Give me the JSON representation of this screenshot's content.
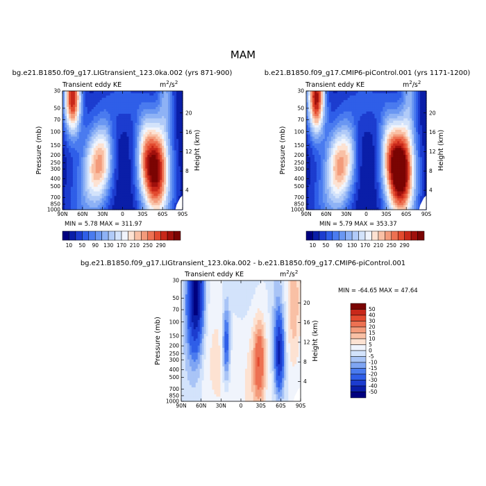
{
  "figure": {
    "title": "MAM",
    "field_label": "Transient eddy KE",
    "units_base": "m",
    "units_exp": "2",
    "units_sep": "/s",
    "units_exp2": "2",
    "ylabel_left": "Pressure (mb)",
    "ylabel_right": "Height (km)"
  },
  "colors": {
    "abs_scale": [
      "#00007f",
      "#0a1ea8",
      "#1c3ccf",
      "#2f5ee8",
      "#4a7bef",
      "#6a97f2",
      "#8eb2f5",
      "#b1cbf8",
      "#d3e3fb",
      "#f0f4fc",
      "#fde2d2",
      "#f9c0a5",
      "#f39b7b",
      "#ed7152",
      "#e24a2f",
      "#c8281a",
      "#a0100c",
      "#7a0403"
    ],
    "diff_scale": [
      "#00007f",
      "#0a1ea8",
      "#1c3ccf",
      "#2f5ee8",
      "#4a7bef",
      "#7fa5f3",
      "#a9c4f6",
      "#d3e3fb",
      "#f0f4fc",
      "#fde2d2",
      "#f9c0a5",
      "#f39b7b",
      "#ed7152",
      "#e24a2f",
      "#c8281a",
      "#7a0403"
    ]
  },
  "chart_data": [
    {
      "type": "heatmap",
      "title": "bg.e21.B1850.f09_g17.LIGtransient_123.0ka.002 (yrs 871-900)",
      "x_ticks": [
        "90N",
        "60N",
        "30N",
        "0",
        "30S",
        "60S",
        "90S"
      ],
      "y_ticks": [
        "30",
        "50",
        "70",
        "100",
        "150",
        "200",
        "250",
        "300",
        "400",
        "500",
        "700",
        "850",
        "1000"
      ],
      "height_ticks": [
        "20",
        "16",
        "12",
        "8",
        "4"
      ],
      "stats": {
        "min_label": "MIN =",
        "min": "5.78",
        "max_label": "MAX =",
        "max": "311.97"
      },
      "colorbar_labels": [
        "10",
        "50",
        "90",
        "130",
        "170",
        "210",
        "250",
        "290"
      ],
      "field": {
        "base": 10,
        "blobs": [
          {
            "lat": 75,
            "p": 36,
            "amp": 300,
            "slat": 9,
            "sz": 0.35
          },
          {
            "lat": 38,
            "p": 270,
            "amp": 200,
            "slat": 14,
            "sz": 0.38
          },
          {
            "lat": 25,
            "p": 170,
            "amp": 60,
            "slat": 8,
            "sz": 0.3
          },
          {
            "lat": -48,
            "p": 280,
            "amp": 300,
            "slat": 15,
            "sz": 0.42
          },
          {
            "lat": -32,
            "p": 160,
            "amp": 70,
            "slat": 9,
            "sz": 0.35
          },
          {
            "lat": 60,
            "p": 850,
            "amp": 60,
            "slat": 18,
            "sz": 0.45
          },
          {
            "lat": -55,
            "p": 850,
            "amp": 70,
            "slat": 16,
            "sz": 0.45
          },
          {
            "lat": -65,
            "p": 32,
            "amp": 90,
            "slat": 8,
            "sz": 0.4
          },
          {
            "lat": 0,
            "p": 40,
            "amp": 45,
            "slat": 28,
            "sz": 0.3
          }
        ]
      }
    },
    {
      "type": "heatmap",
      "title": "b.e21.B1850.f09_g17.CMIP6-piControl.001 (yrs 1171-1200)",
      "x_ticks": [
        "90N",
        "60N",
        "30N",
        "0",
        "30S",
        "60S",
        "90S"
      ],
      "y_ticks": [
        "30",
        "50",
        "70",
        "100",
        "150",
        "200",
        "250",
        "300",
        "400",
        "500",
        "700",
        "850",
        "1000"
      ],
      "height_ticks": [
        "20",
        "16",
        "12",
        "8",
        "4"
      ],
      "stats": {
        "min_label": "MIN =",
        "min": "5.79",
        "max_label": "MAX =",
        "max": "353.37"
      },
      "colorbar_labels": [
        "10",
        "50",
        "90",
        "130",
        "170",
        "210",
        "250",
        "290"
      ],
      "field": {
        "base": 10,
        "blobs": [
          {
            "lat": 75,
            "p": 36,
            "amp": 310,
            "slat": 9,
            "sz": 0.35
          },
          {
            "lat": 40,
            "p": 270,
            "amp": 205,
            "slat": 14,
            "sz": 0.38
          },
          {
            "lat": 25,
            "p": 170,
            "amp": 60,
            "slat": 8,
            "sz": 0.3
          },
          {
            "lat": -50,
            "p": 285,
            "amp": 345,
            "slat": 15,
            "sz": 0.42
          },
          {
            "lat": -32,
            "p": 160,
            "amp": 75,
            "slat": 9,
            "sz": 0.35
          },
          {
            "lat": 60,
            "p": 850,
            "amp": 60,
            "slat": 18,
            "sz": 0.45
          },
          {
            "lat": -55,
            "p": 850,
            "amp": 75,
            "slat": 16,
            "sz": 0.45
          },
          {
            "lat": -65,
            "p": 32,
            "amp": 90,
            "slat": 8,
            "sz": 0.4
          },
          {
            "lat": 0,
            "p": 40,
            "amp": 45,
            "slat": 28,
            "sz": 0.3
          }
        ]
      }
    },
    {
      "type": "heatmap",
      "title": "bg.e21.B1850.f09_g17.LIGtransient_123.0ka.002 - b.e21.B1850.f09_g17.CMIP6-piControl.001",
      "x_ticks": [
        "90N",
        "60N",
        "30N",
        "0",
        "30S",
        "60S",
        "90S"
      ],
      "y_ticks": [
        "30",
        "50",
        "70",
        "100",
        "150",
        "200",
        "250",
        "300",
        "400",
        "500",
        "700",
        "850",
        "1000"
      ],
      "height_ticks": [
        "20",
        "16",
        "12",
        "8",
        "4"
      ],
      "stats": {
        "min_label": "MIN =",
        "min": "-64.65",
        "max_label": "MAX =",
        "max": "47.64"
      },
      "colorbar_labels": [
        "50",
        "40",
        "30",
        "20",
        "15",
        "10",
        "5",
        "0",
        "-5",
        "-10",
        "-15",
        "-20",
        "-30",
        "-40",
        "-50"
      ],
      "field": {
        "base": 0,
        "blobs": [
          {
            "lat": 68,
            "p": 45,
            "amp": -50,
            "slat": 8,
            "sz": 0.45
          },
          {
            "lat": 72,
            "p": 130,
            "amp": -12,
            "slat": 10,
            "sz": 0.55
          },
          {
            "lat": 22,
            "p": 190,
            "amp": -28,
            "slat": 4,
            "sz": 0.35
          },
          {
            "lat": 10,
            "p": 450,
            "amp": 4,
            "slat": 30,
            "sz": 0.9
          },
          {
            "lat": 40,
            "p": 250,
            "amp": 4,
            "slat": 15,
            "sz": 0.6
          },
          {
            "lat": -28,
            "p": 300,
            "amp": 25,
            "slat": 6,
            "sz": 0.35
          },
          {
            "lat": -22,
            "p": 650,
            "amp": 6,
            "slat": 10,
            "sz": 0.6
          },
          {
            "lat": -58,
            "p": 260,
            "amp": -40,
            "slat": 5,
            "sz": 0.35
          },
          {
            "lat": -80,
            "p": 55,
            "amp": 14,
            "slat": 7,
            "sz": 0.6
          },
          {
            "lat": -55,
            "p": 70,
            "amp": -8,
            "slat": 6,
            "sz": 0.5
          },
          {
            "lat": 0,
            "p": 40,
            "amp": -4,
            "slat": 20,
            "sz": 0.5
          }
        ],
        "levels": [
          -50,
          -40,
          -30,
          -20,
          -15,
          -10,
          -5,
          0,
          5,
          10,
          15,
          20,
          30,
          40,
          50
        ]
      }
    }
  ]
}
